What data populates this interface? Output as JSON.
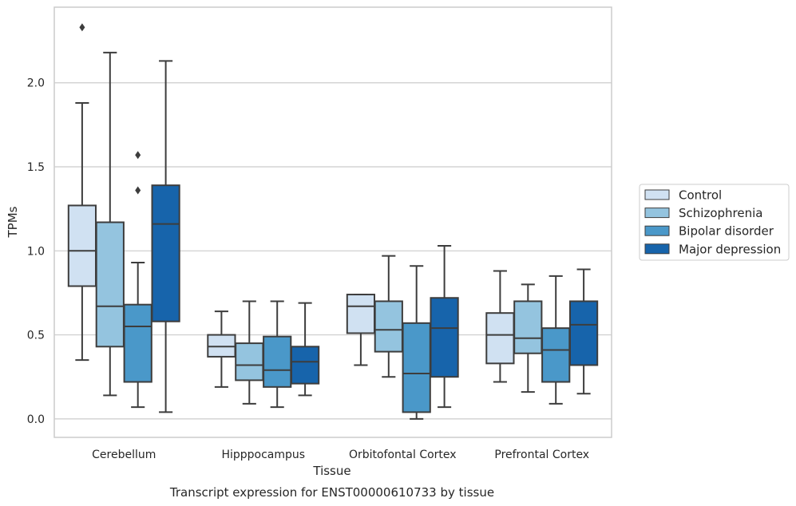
{
  "chart_data": {
    "type": "box",
    "title": "",
    "xlabel": "Tissue",
    "ylabel": "TPMs",
    "caption": "Transcript expression for ENST00000610733 by tissue",
    "ylim": [
      -0.11,
      2.45
    ],
    "yticks": [
      0.0,
      0.5,
      1.0,
      1.5,
      2.0
    ],
    "ytick_labels": [
      "0.0",
      "0.5",
      "1.0",
      "1.5",
      "2.0"
    ],
    "grid": "horizontal",
    "legend_position": "right",
    "categories": [
      "Cerebellum",
      "Hipppocampus",
      "Orbitofontal Cortex",
      "Prefrontal Cortex"
    ],
    "series": [
      {
        "name": "Control",
        "color": "#d0e1f2",
        "boxes": [
          {
            "whislo": 0.35,
            "q1": 0.79,
            "med": 1.0,
            "q3": 1.27,
            "whishi": 1.88,
            "fliers": [
              2.33
            ]
          },
          {
            "whislo": 0.19,
            "q1": 0.37,
            "med": 0.43,
            "q3": 0.5,
            "whishi": 0.64,
            "fliers": []
          },
          {
            "whislo": 0.32,
            "q1": 0.51,
            "med": 0.67,
            "q3": 0.74,
            "whishi": 0.74,
            "fliers": []
          },
          {
            "whislo": 0.22,
            "q1": 0.33,
            "med": 0.5,
            "q3": 0.63,
            "whishi": 0.88,
            "fliers": []
          }
        ]
      },
      {
        "name": "Schizophrenia",
        "color": "#94c4df",
        "boxes": [
          {
            "whislo": 0.14,
            "q1": 0.43,
            "med": 0.67,
            "q3": 1.17,
            "whishi": 2.18,
            "fliers": []
          },
          {
            "whislo": 0.09,
            "q1": 0.23,
            "med": 0.32,
            "q3": 0.45,
            "whishi": 0.7,
            "fliers": []
          },
          {
            "whislo": 0.25,
            "q1": 0.4,
            "med": 0.53,
            "q3": 0.7,
            "whishi": 0.97,
            "fliers": []
          },
          {
            "whislo": 0.16,
            "q1": 0.39,
            "med": 0.48,
            "q3": 0.7,
            "whishi": 0.8,
            "fliers": []
          }
        ]
      },
      {
        "name": "Bipolar disorder",
        "color": "#4a98c9",
        "boxes": [
          {
            "whislo": 0.07,
            "q1": 0.22,
            "med": 0.55,
            "q3": 0.68,
            "whishi": 0.93,
            "fliers": [
              1.36,
              1.57
            ]
          },
          {
            "whislo": 0.07,
            "q1": 0.19,
            "med": 0.29,
            "q3": 0.49,
            "whishi": 0.7,
            "fliers": []
          },
          {
            "whislo": 0.0,
            "q1": 0.04,
            "med": 0.27,
            "q3": 0.57,
            "whishi": 0.91,
            "fliers": []
          },
          {
            "whislo": 0.09,
            "q1": 0.22,
            "med": 0.41,
            "q3": 0.54,
            "whishi": 0.85,
            "fliers": []
          }
        ]
      },
      {
        "name": "Major depression",
        "color": "#1764ab",
        "boxes": [
          {
            "whislo": 0.04,
            "q1": 0.58,
            "med": 1.16,
            "q3": 1.39,
            "whishi": 2.13,
            "fliers": []
          },
          {
            "whislo": 0.14,
            "q1": 0.21,
            "med": 0.34,
            "q3": 0.43,
            "whishi": 0.69,
            "fliers": []
          },
          {
            "whislo": 0.07,
            "q1": 0.25,
            "med": 0.54,
            "q3": 0.72,
            "whishi": 1.03,
            "fliers": []
          },
          {
            "whislo": 0.15,
            "q1": 0.32,
            "med": 0.56,
            "q3": 0.7,
            "whishi": 0.89,
            "fliers": []
          }
        ]
      }
    ]
  }
}
